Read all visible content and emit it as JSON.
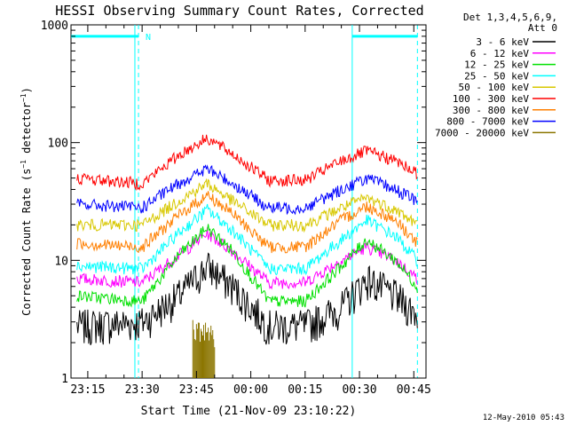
{
  "chart_data": {
    "type": "line",
    "title": "HESSI Observing Summary Count Rates, Corrected",
    "xlabel": "Start Time (21-Nov-09 23:10:22)",
    "ylabel": "Corrected Count Rate (s⁻¹ detector⁻¹)",
    "ylabel_parts": {
      "main": "Corrected Count Rate (s",
      "exp1": "−1",
      "mid": " detector",
      "exp2": "−1",
      "end": ")"
    },
    "y_scale": "log",
    "ylim": [
      1,
      1000
    ],
    "xlim": [
      "23:10:22",
      "00:48:22"
    ],
    "x_ticks": [
      "23:15",
      "23:30",
      "23:45",
      "00:00",
      "00:15",
      "00:30",
      "00:45"
    ],
    "y_ticks": [
      "1",
      "10",
      "100",
      "1000"
    ],
    "grid": false,
    "legend_position": "right",
    "legend_header": [
      "Det 1,3,4,5,6,9,",
      "Att 0"
    ],
    "timestamp": "12-May-2010 05:43",
    "annotations": [
      {
        "text": "N",
        "x": "23:29"
      }
    ],
    "night_intervals": [
      {
        "start": "23:10",
        "end": "23:29"
      },
      {
        "start": "00:28",
        "end": "00:46"
      }
    ],
    "saa_marker_x": [
      "23:28",
      "00:28"
    ],
    "series": [
      {
        "name": "3 - 6 keV",
        "color": "#000000",
        "x": [
          "23:12",
          "23:30",
          "23:40",
          "23:48",
          "23:55",
          "00:05",
          "00:15",
          "00:25",
          "00:32",
          "00:40",
          "00:46"
        ],
        "values": [
          2.8,
          3.0,
          5,
          9,
          6,
          2.8,
          2.8,
          4,
          7,
          5,
          3.5
        ]
      },
      {
        "name": "6 - 12 keV",
        "color": "#ff00ff",
        "x": [
          "23:12",
          "23:30",
          "23:40",
          "23:48",
          "23:55",
          "00:05",
          "00:15",
          "00:25",
          "00:32",
          "00:40",
          "00:46"
        ],
        "values": [
          7,
          6.5,
          11,
          17,
          12,
          6.5,
          6.5,
          10,
          13,
          10,
          7
        ]
      },
      {
        "name": "12 - 25 keV",
        "color": "#00e000",
        "x": [
          "23:12",
          "23:30",
          "23:40",
          "23:48",
          "23:55",
          "00:05",
          "00:15",
          "00:25",
          "00:32",
          "00:40",
          "00:46"
        ],
        "values": [
          5,
          4.5,
          11,
          19,
          12,
          4.5,
          4.5,
          9,
          15,
          10,
          6
        ]
      },
      {
        "name": "25 - 50 keV",
        "color": "#00ffff",
        "x": [
          "23:12",
          "23:30",
          "23:40",
          "23:48",
          "23:55",
          "00:05",
          "00:15",
          "00:25",
          "00:32",
          "00:40",
          "00:46"
        ],
        "values": [
          9,
          8.5,
          17,
          27,
          18,
          8.5,
          8.5,
          15,
          22,
          16,
          10
        ]
      },
      {
        "name": "50 - 100 keV",
        "color": "#d8c800",
        "x": [
          "23:12",
          "23:30",
          "23:40",
          "23:48",
          "23:55",
          "00:05",
          "00:15",
          "00:25",
          "00:32",
          "00:40",
          "00:46"
        ],
        "values": [
          20,
          20,
          32,
          45,
          32,
          20,
          20,
          28,
          34,
          27,
          20
        ]
      },
      {
        "name": "100 - 300 keV",
        "color": "#ff0000",
        "x": [
          "23:12",
          "23:30",
          "23:40",
          "23:48",
          "23:55",
          "00:05",
          "00:15",
          "00:25",
          "00:32",
          "00:40",
          "00:46"
        ],
        "values": [
          50,
          45,
          78,
          110,
          80,
          48,
          48,
          70,
          85,
          70,
          55
        ]
      },
      {
        "name": "300 - 800 keV",
        "color": "#ff7f00",
        "x": [
          "23:12",
          "23:30",
          "23:40",
          "23:48",
          "23:55",
          "00:05",
          "00:15",
          "00:25",
          "00:32",
          "00:40",
          "00:46"
        ],
        "values": [
          14,
          13,
          24,
          36,
          25,
          13,
          13,
          22,
          29,
          22,
          14
        ]
      },
      {
        "name": "800 - 7000 keV",
        "color": "#0000ff",
        "x": [
          "23:12",
          "23:30",
          "23:40",
          "23:48",
          "23:55",
          "00:05",
          "00:15",
          "00:25",
          "00:32",
          "00:40",
          "00:46"
        ],
        "values": [
          30,
          28,
          45,
          60,
          45,
          28,
          28,
          40,
          50,
          40,
          32
        ]
      },
      {
        "name": "7000 - 20000 keV",
        "color": "#8b7500",
        "x": [
          "23:44",
          "23:46",
          "23:48",
          "23:50"
        ],
        "values": [
          2.5,
          2.3,
          2.6,
          2.2
        ]
      }
    ]
  }
}
